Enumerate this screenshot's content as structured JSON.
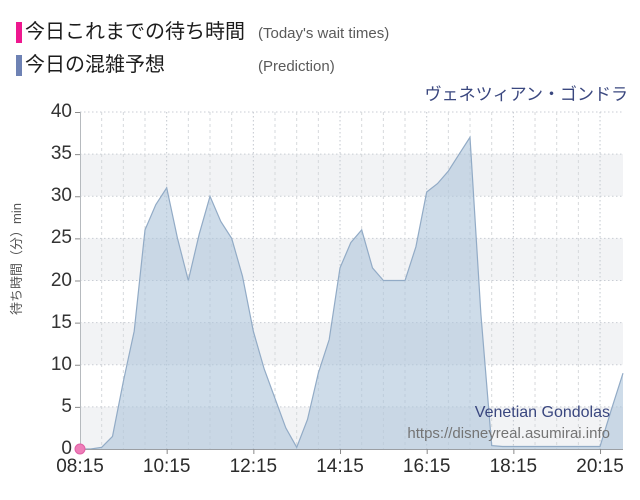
{
  "legend": {
    "items": [
      {
        "label_jp": "今日これまでの待ち時間",
        "label_en": "(Today's wait times)",
        "color": "#ee188f"
      },
      {
        "label_jp": "今日の混雑予想",
        "label_en": "(Prediction)",
        "color": "#6e82b4"
      }
    ]
  },
  "chart_title": "ヴェネツィアン・ゴンドラ",
  "watermark": {
    "name": "Venetian Gondolas",
    "url": "https://disneyreal.asumirai.info"
  },
  "chart_data": {
    "type": "area",
    "title": "ヴェネツィアン・ゴンドラ",
    "xlabel": "",
    "ylabel": "待ち時間（分）min",
    "ylim": [
      0,
      40
    ],
    "yticks": [
      0,
      5,
      10,
      15,
      20,
      25,
      30,
      35,
      40
    ],
    "xtick_labels": [
      "08:15",
      "10:15",
      "12:15",
      "14:15",
      "16:15",
      "18:15",
      "20:15"
    ],
    "xtick_hours": [
      8.25,
      10.25,
      12.25,
      14.25,
      16.25,
      18.25,
      20.25
    ],
    "x_domain_hours": [
      8.25,
      20.78
    ],
    "x_minor_step_hours": 0.5,
    "grid": true,
    "band_fill": "#f2f3f5",
    "legend_position": "top-left",
    "series": [
      {
        "name": "今日これまでの待ち時間",
        "type": "scatter",
        "marker_fill": "#ee7db8",
        "marker_stroke": "#e05fa5",
        "points": [
          [
            8.25,
            0
          ]
        ]
      },
      {
        "name": "今日の混雑予想",
        "type": "area",
        "fill": "rgba(173,196,219,0.6)",
        "stroke": "#92abc6",
        "points": [
          [
            8.25,
            0
          ],
          [
            8.5,
            0
          ],
          [
            8.75,
            0.2
          ],
          [
            9.0,
            1.5
          ],
          [
            9.25,
            8
          ],
          [
            9.5,
            14
          ],
          [
            9.75,
            26
          ],
          [
            10.0,
            29
          ],
          [
            10.25,
            31
          ],
          [
            10.5,
            25
          ],
          [
            10.75,
            20
          ],
          [
            11.0,
            25.5
          ],
          [
            11.25,
            30
          ],
          [
            11.5,
            27
          ],
          [
            11.75,
            25
          ],
          [
            12.0,
            20.5
          ],
          [
            12.25,
            14
          ],
          [
            12.5,
            9.5
          ],
          [
            12.75,
            6
          ],
          [
            13.0,
            2.5
          ],
          [
            13.25,
            0.2
          ],
          [
            13.5,
            3.5
          ],
          [
            13.75,
            9
          ],
          [
            14.0,
            13
          ],
          [
            14.25,
            21.5
          ],
          [
            14.5,
            24.5
          ],
          [
            14.75,
            26
          ],
          [
            15.0,
            21.5
          ],
          [
            15.25,
            20
          ],
          [
            15.5,
            20
          ],
          [
            15.75,
            20
          ],
          [
            16.0,
            24
          ],
          [
            16.25,
            30.5
          ],
          [
            16.5,
            31.5
          ],
          [
            16.75,
            33
          ],
          [
            17.0,
            35
          ],
          [
            17.25,
            37
          ],
          [
            17.5,
            16
          ],
          [
            17.75,
            0.4
          ],
          [
            18.0,
            0.3
          ],
          [
            18.25,
            0.3
          ],
          [
            18.5,
            0.3
          ],
          [
            18.75,
            0.3
          ],
          [
            19.0,
            0.3
          ],
          [
            19.25,
            0.3
          ],
          [
            19.5,
            0.3
          ],
          [
            19.75,
            0.3
          ],
          [
            20.0,
            0.3
          ],
          [
            20.25,
            0.3
          ],
          [
            20.5,
            4.5
          ],
          [
            20.78,
            9
          ]
        ]
      }
    ]
  }
}
